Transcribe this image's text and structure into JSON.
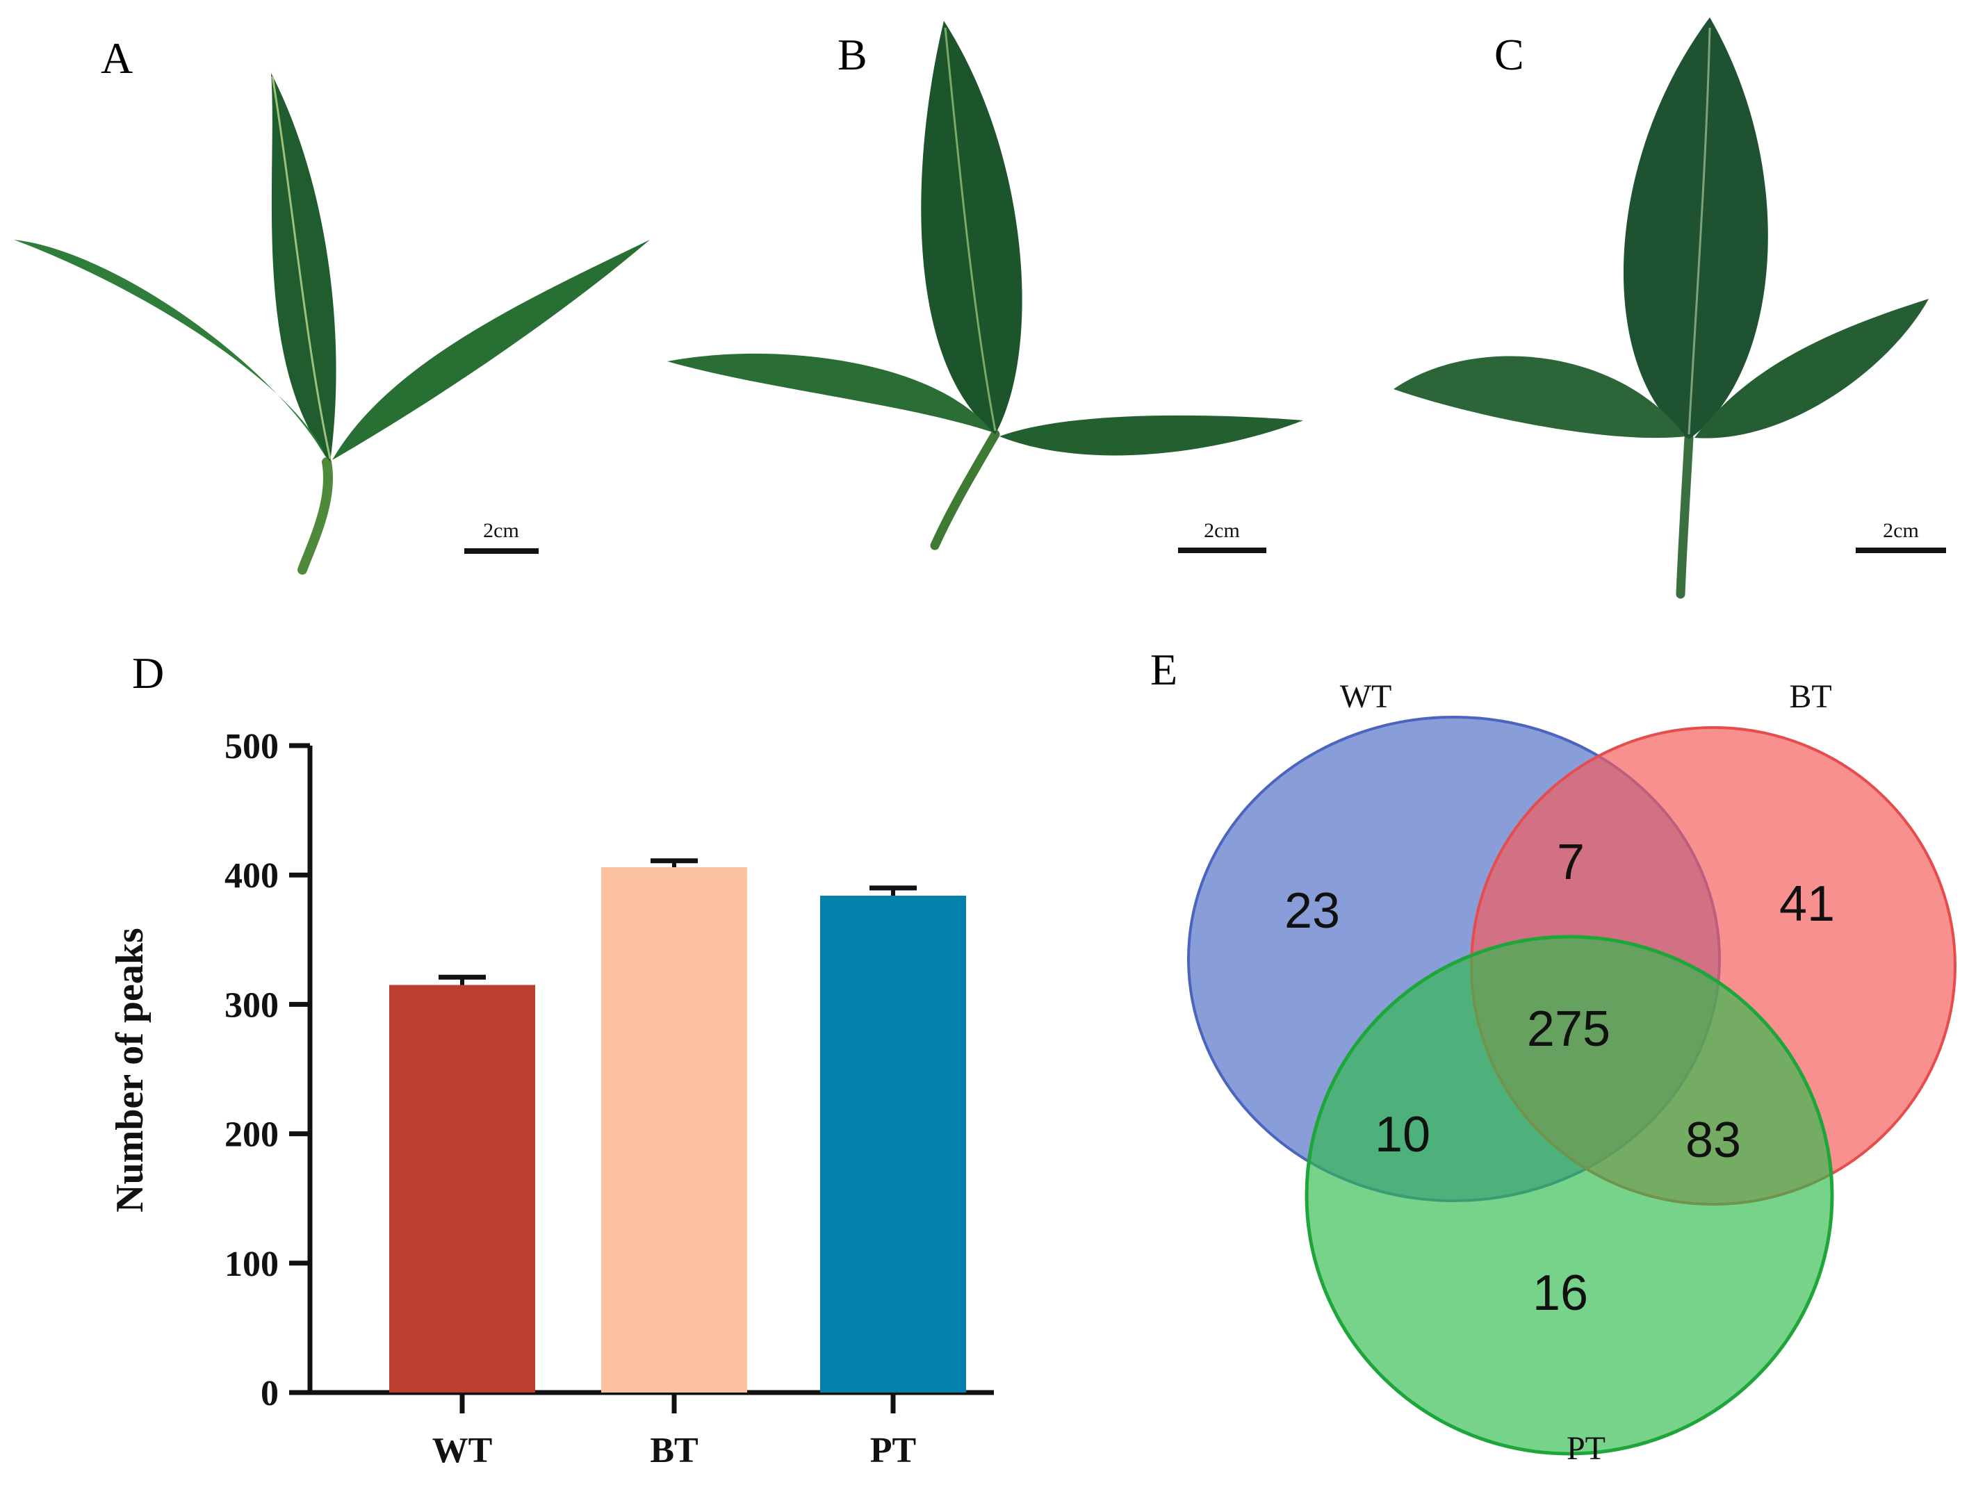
{
  "panels": {
    "a": "A",
    "b": "B",
    "c": "C",
    "d": "D",
    "e": "E"
  },
  "scale_bars": {
    "a": "2cm",
    "b": "2cm",
    "c": "2cm"
  },
  "colors": {
    "wt_bar": "#bd3d2f",
    "bt_bar": "#fcc29f",
    "pt_bar": "#0381aa",
    "venn_wt": "#5c79c9",
    "venn_bt": "#f45b5b",
    "venn_pt": "#2ebb4b",
    "leaf_dark": "#1f5d2f",
    "leaf_mid": "#2e7d3a"
  },
  "chart_data": [
    {
      "type": "bar",
      "ylabel": "Number of peaks",
      "xlabel": "",
      "categories": [
        "WT",
        "BT",
        "PT"
      ],
      "values": [
        315,
        406,
        384
      ],
      "error": [
        6,
        5,
        6
      ],
      "ylim": [
        0,
        500
      ],
      "yticks": [
        0,
        100,
        200,
        300,
        400,
        500
      ],
      "grid": false
    },
    {
      "type": "venn",
      "sets": [
        "WT",
        "BT",
        "PT"
      ],
      "regions": {
        "WT_only": 23,
        "BT_only": 41,
        "PT_only": 16,
        "WT_BT": 7,
        "WT_PT": 10,
        "BT_PT": 83,
        "WT_BT_PT": 275
      }
    }
  ]
}
